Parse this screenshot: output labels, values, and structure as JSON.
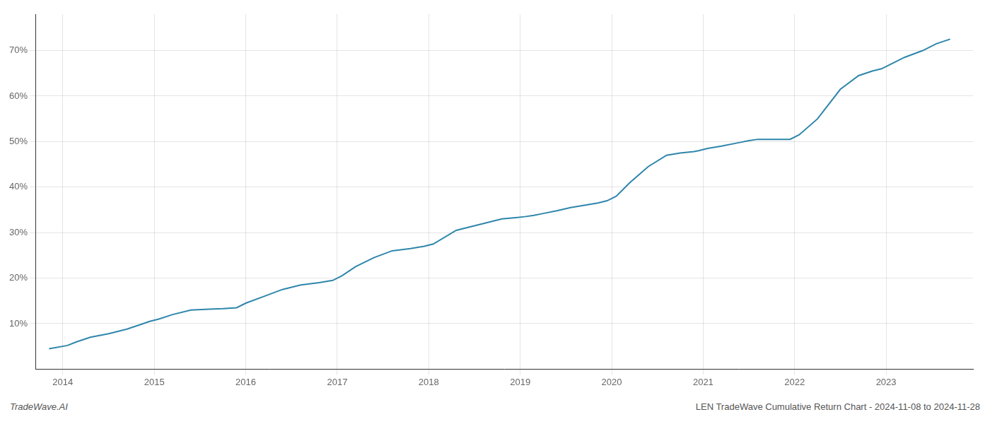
{
  "chart_data": {
    "type": "line",
    "annotations": [
      "TradeWave.AI",
      "LEN TradeWave Cumulative Return Chart - 2024-11-08 to 2024-11-28"
    ],
    "color": "#2e86ab",
    "x": [
      2013.85,
      2014.05,
      2014.15,
      2014.3,
      2014.5,
      2014.7,
      2014.85,
      2014.95,
      2015.05,
      2015.2,
      2015.4,
      2015.6,
      2015.75,
      2015.9,
      2016.0,
      2016.2,
      2016.4,
      2016.6,
      2016.8,
      2016.95,
      2017.05,
      2017.2,
      2017.4,
      2017.6,
      2017.8,
      2017.95,
      2018.05,
      2018.3,
      2018.6,
      2018.8,
      2018.95,
      2019.05,
      2019.15,
      2019.25,
      2019.4,
      2019.55,
      2019.7,
      2019.85,
      2019.95,
      2020.05,
      2020.2,
      2020.4,
      2020.6,
      2020.75,
      2020.9,
      2020.95,
      2021.05,
      2021.2,
      2021.4,
      2021.5,
      2021.6,
      2021.75,
      2021.9,
      2021.95,
      2022.05,
      2022.25,
      2022.5,
      2022.7,
      2022.85,
      2022.95,
      2023.05,
      2023.2,
      2023.4,
      2023.55,
      2023.7
    ],
    "values": [
      4.5,
      5.2,
      6.0,
      7.0,
      7.8,
      8.8,
      9.8,
      10.5,
      11.0,
      12.0,
      13.0,
      13.2,
      13.3,
      13.5,
      14.5,
      16.0,
      17.5,
      18.5,
      19.0,
      19.5,
      20.5,
      22.5,
      24.5,
      26.0,
      26.5,
      27.0,
      27.5,
      30.5,
      32.0,
      33.0,
      33.3,
      33.5,
      33.8,
      34.2,
      34.8,
      35.5,
      36.0,
      36.5,
      37.0,
      38.0,
      41.0,
      44.5,
      47.0,
      47.5,
      47.8,
      48.0,
      48.5,
      49.0,
      49.8,
      50.2,
      50.5,
      50.5,
      50.5,
      50.5,
      51.5,
      55.0,
      61.5,
      64.5,
      65.5,
      66.0,
      67.0,
      68.5,
      70.0,
      71.5,
      72.5
    ],
    "xlim": [
      2013.7,
      2023.95
    ],
    "xticks": [
      2014,
      2015,
      2016,
      2017,
      2018,
      2019,
      2020,
      2021,
      2022,
      2023
    ],
    "ylim": [
      0,
      78
    ],
    "yticks": [
      {
        "value": 10,
        "label": "10%"
      },
      {
        "value": 20,
        "label": "20%"
      },
      {
        "value": 30,
        "label": "30%"
      },
      {
        "value": 40,
        "label": "40%"
      },
      {
        "value": 50,
        "label": "50%"
      },
      {
        "value": 60,
        "label": "60%"
      },
      {
        "value": 70,
        "label": "70%"
      }
    ],
    "grid": true
  }
}
